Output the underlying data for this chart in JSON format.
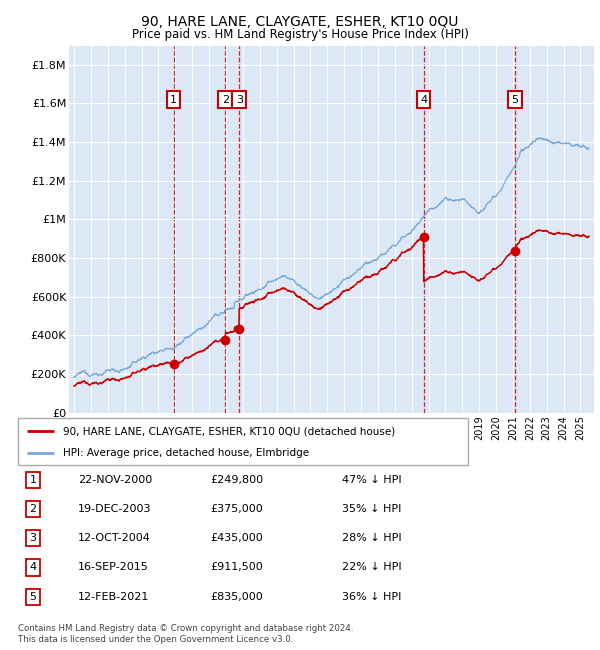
{
  "title": "90, HARE LANE, CLAYGATE, ESHER, KT10 0QU",
  "subtitle": "Price paid vs. HM Land Registry's House Price Index (HPI)",
  "background_color": "#ffffff",
  "plot_bg_color": "#dce8f5",
  "grid_color": "#ffffff",
  "hpi_line_color": "#7aa8d4",
  "price_line_color": "#cc0000",
  "sale_marker_color": "#cc0000",
  "annotation_box_color": "#cc0000",
  "ylim": [
    0,
    1900000
  ],
  "yticks": [
    0,
    200000,
    400000,
    600000,
    800000,
    1000000,
    1200000,
    1400000,
    1600000,
    1800000
  ],
  "ytick_labels": [
    "£0",
    "£200K",
    "£400K",
    "£600K",
    "£800K",
    "£1M",
    "£1.2M",
    "£1.4M",
    "£1.6M",
    "£1.8M"
  ],
  "xlim_start": 1994.7,
  "xlim_end": 2025.8,
  "sales": [
    {
      "num": 1,
      "year": 2000.896,
      "price": 249800
    },
    {
      "num": 2,
      "year": 2003.962,
      "price": 375000
    },
    {
      "num": 3,
      "year": 2004.782,
      "price": 435000
    },
    {
      "num": 4,
      "year": 2015.706,
      "price": 911500
    },
    {
      "num": 5,
      "year": 2021.116,
      "price": 835000
    }
  ],
  "legend_line1": "90, HARE LANE, CLAYGATE, ESHER, KT10 0QU (detached house)",
  "legend_line2": "HPI: Average price, detached house, Elmbridge",
  "footer1": "Contains HM Land Registry data © Crown copyright and database right 2024.",
  "footer2": "This data is licensed under the Open Government Licence v3.0.",
  "table_rows": [
    [
      "1",
      "22-NOV-2000",
      "£249,800",
      "47% ↓ HPI"
    ],
    [
      "2",
      "19-DEC-2003",
      "£375,000",
      "35% ↓ HPI"
    ],
    [
      "3",
      "12-OCT-2004",
      "£435,000",
      "28% ↓ HPI"
    ],
    [
      "4",
      "16-SEP-2015",
      "£911,500",
      "22% ↓ HPI"
    ],
    [
      "5",
      "12-FEB-2021",
      "£835,000",
      "36% ↓ HPI"
    ]
  ]
}
